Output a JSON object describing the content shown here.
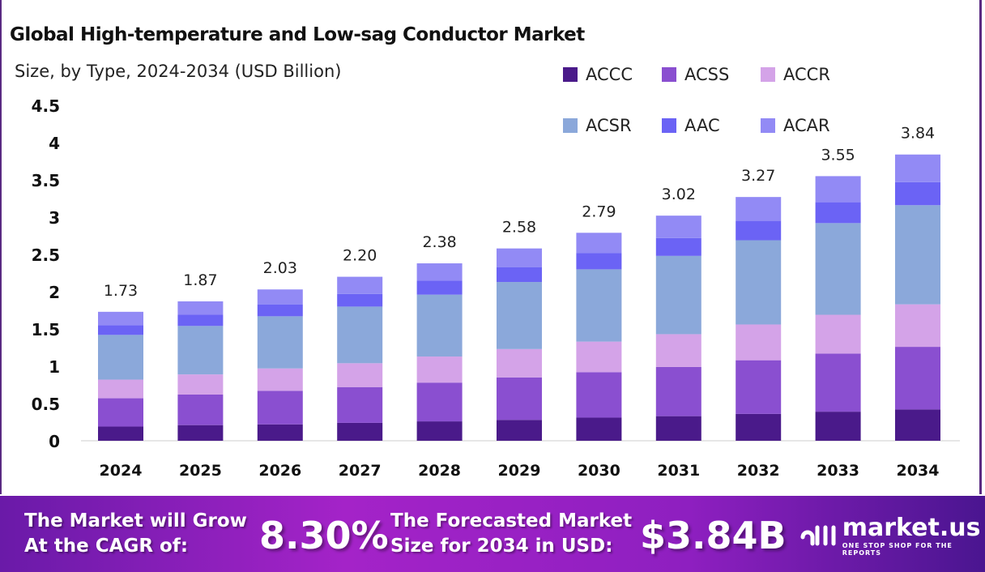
{
  "chart_data": {
    "type": "stacked-bar",
    "title": "Global High-temperature and Low-sag Conductor Market",
    "subtitle": "Size, by Type, 2024-2034 (USD Billion)",
    "categories": [
      "2024",
      "2025",
      "2026",
      "2027",
      "2028",
      "2029",
      "2030",
      "2031",
      "2032",
      "2033",
      "2034"
    ],
    "totals": [
      "1.73",
      "1.87",
      "2.03",
      "2.20",
      "2.38",
      "2.58",
      "2.79",
      "3.02",
      "3.27",
      "3.55",
      "3.84"
    ],
    "ylim": [
      0,
      4.5
    ],
    "yticks": [
      "0",
      "0.5",
      "1",
      "1.5",
      "2",
      "2.5",
      "3",
      "3.5",
      "4",
      "4.5"
    ],
    "legend_position": "top-right",
    "grid": false,
    "series": [
      {
        "name": "ACCC",
        "color": "#4a1a8a",
        "values": [
          0.19,
          0.21,
          0.22,
          0.24,
          0.26,
          0.28,
          0.31,
          0.33,
          0.36,
          0.39,
          0.42
        ]
      },
      {
        "name": "ACSS",
        "color": "#8a4fd0",
        "values": [
          0.38,
          0.41,
          0.45,
          0.48,
          0.52,
          0.57,
          0.61,
          0.66,
          0.72,
          0.78,
          0.84
        ]
      },
      {
        "name": "ACCR",
        "color": "#d4a3e8",
        "values": [
          0.25,
          0.27,
          0.3,
          0.32,
          0.35,
          0.38,
          0.41,
          0.44,
          0.48,
          0.52,
          0.57
        ]
      },
      {
        "name": "ACSR",
        "color": "#8ba8da",
        "values": [
          0.6,
          0.65,
          0.7,
          0.76,
          0.83,
          0.9,
          0.97,
          1.05,
          1.13,
          1.23,
          1.33
        ]
      },
      {
        "name": "AAC",
        "color": "#6b63f5",
        "values": [
          0.13,
          0.15,
          0.16,
          0.17,
          0.19,
          0.2,
          0.22,
          0.24,
          0.26,
          0.28,
          0.31
        ]
      },
      {
        "name": "ACAR",
        "color": "#928af5",
        "values": [
          0.18,
          0.18,
          0.2,
          0.23,
          0.23,
          0.25,
          0.27,
          0.3,
          0.32,
          0.35,
          0.37
        ]
      }
    ]
  },
  "footer": {
    "cagr_label_1": "The Market will Grow",
    "cagr_label_2": "At the CAGR of:",
    "cagr_value": "8.30%",
    "forecast_label_1": "The Forecasted Market",
    "forecast_label_2": "Size for 2034 in USD:",
    "forecast_value": "$3.84B",
    "logo_name": "market.us",
    "logo_tagline": "ONE STOP SHOP FOR THE REPORTS"
  }
}
